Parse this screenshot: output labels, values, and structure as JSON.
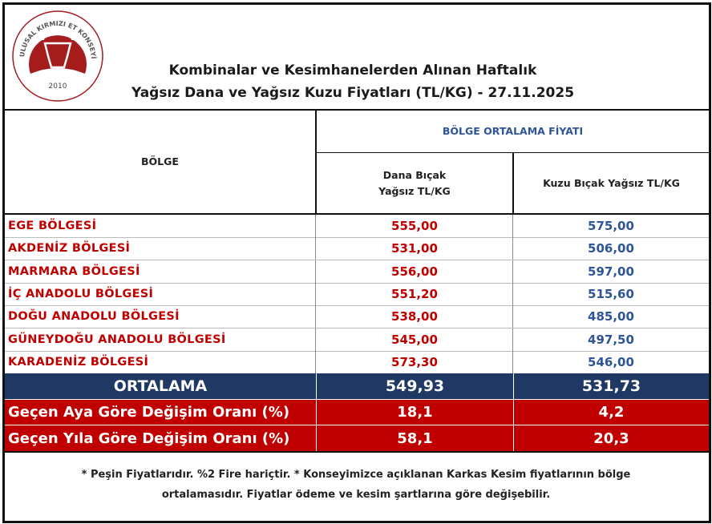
{
  "logo": {
    "text": "ULUSAL KIRMIZI ET KONSEYİ",
    "year": "2010",
    "color": "#a51c1c"
  },
  "title": {
    "line1": "Kombinalar ve Kesimhanelerden Alınan Haftalık",
    "line2": "Yağsız Dana ve Yağsız Kuzu Fiyatları (TL/KG) - 27.11.2025"
  },
  "table": {
    "header_region": "BÖLGE",
    "header_group": "BÖLGE ORTALAMA FİYATI",
    "header_col1_line1": "Dana Bıçak",
    "header_col1_line2": "Yağsız TL/KG",
    "header_col2": "Kuzu Bıçak Yağsız TL/KG",
    "rows": [
      {
        "region": "EGE BÖLGESİ",
        "dana": "555,00",
        "kuzu": "575,00"
      },
      {
        "region": "AKDENİZ BÖLGESİ",
        "dana": "531,00",
        "kuzu": "506,00"
      },
      {
        "region": "MARMARA BÖLGESİ",
        "dana": "556,00",
        "kuzu": "597,00"
      },
      {
        "region": "İÇ ANADOLU BÖLGESİ",
        "dana": "551,20",
        "kuzu": "515,60"
      },
      {
        "region": "DOĞU ANADOLU BÖLGESİ",
        "dana": "538,00",
        "kuzu": "485,00"
      },
      {
        "region": "GÜNEYDOĞU ANADOLU BÖLGESİ",
        "dana": "545,00",
        "kuzu": "497,50"
      },
      {
        "region": "KARADENİZ BÖLGESİ",
        "dana": "573,30",
        "kuzu": "546,00"
      }
    ],
    "average": {
      "label": "ORTALAMA",
      "dana": "549,93",
      "kuzu": "531,73"
    },
    "monthly_change": {
      "label": "Geçen Aya Göre Değişim Oranı (%)",
      "dana": "18,1",
      "kuzu": "4,2"
    },
    "yearly_change": {
      "label": "Geçen Yıla Göre Değişim Oranı (%)",
      "dana": "58,1",
      "kuzu": "20,3"
    }
  },
  "footnote": {
    "line1": "* Peşin Fiyatlarıdır.  %2 Fire hariçtir. * Konseyimizce açıklanan Karkas Kesim fiyatlarının bölge",
    "line2": "ortalamasıdır. Fiyatlar  ödeme  ve kesim şartlarına göre değişebilir."
  },
  "colors": {
    "region_text": "#c00000",
    "kuzu_text": "#2e5597",
    "average_bg": "#1f3864",
    "change_bg": "#c00000"
  }
}
